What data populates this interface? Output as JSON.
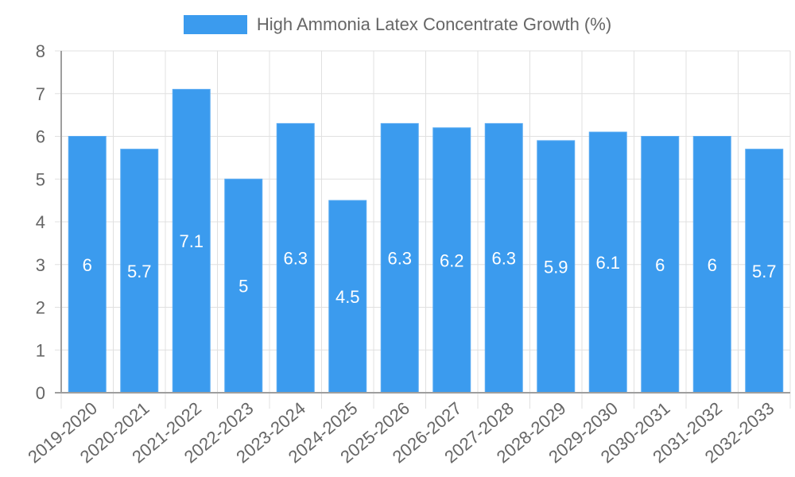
{
  "chart_data": {
    "type": "bar",
    "title": "",
    "legend": [
      {
        "label": "High Ammonia Latex Concentrate Growth (%)",
        "color": "#3b9bee"
      }
    ],
    "legend_position": "top",
    "categories": [
      "2019-2020",
      "2020-2021",
      "2021-2022",
      "2022-2023",
      "2023-2024",
      "2024-2025",
      "2025-2026",
      "2026-2027",
      "2027-2028",
      "2028-2029",
      "2029-2030",
      "2030-2031",
      "2031-2032",
      "2032-2033"
    ],
    "series": [
      {
        "name": "High Ammonia Latex Concentrate Growth (%)",
        "values": [
          6,
          5.7,
          7.1,
          5,
          6.3,
          4.5,
          6.3,
          6.2,
          6.3,
          5.9,
          6.1,
          6,
          6,
          5.7
        ]
      }
    ],
    "data_labels": [
      "6",
      "5.7",
      "7.1",
      "5",
      "6.3",
      "4.5",
      "6.3",
      "6.2",
      "6.3",
      "5.9",
      "6.1",
      "6",
      "6",
      "5.7"
    ],
    "xlabel": "",
    "ylabel": "",
    "ylim": [
      0,
      8
    ],
    "yticks": [
      0,
      1,
      2,
      3,
      4,
      5,
      6,
      7,
      8
    ],
    "grid": true,
    "x_tick_rotation": -40
  },
  "colors": {
    "bar": "#3b9bee",
    "bar_border": "#5aabf2",
    "grid": "#e0e0e0",
    "axis": "#9e9e9e",
    "tick_text": "#666666",
    "label_text": "#ffffff"
  }
}
